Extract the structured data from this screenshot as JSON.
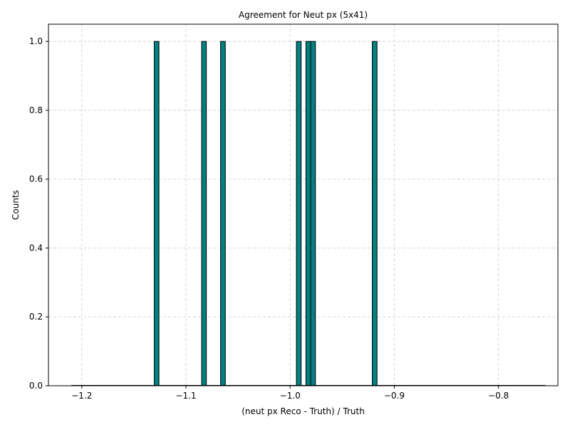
{
  "chart_data": {
    "type": "bar",
    "title": "Agreement for Neut px (5x41)",
    "xlabel": "(neut px Reco - Truth) / Truth",
    "ylabel": "Counts",
    "xlim": [
      -1.232,
      -0.743
    ],
    "ylim": [
      0.0,
      1.05
    ],
    "x_range_drawn": [
      -1.21,
      -0.755
    ],
    "bin_width": 0.00455,
    "xticks": [
      -1.2,
      -1.1,
      -1.0,
      -0.9,
      -0.8
    ],
    "xtick_labels": [
      "−1.2",
      "−1.1",
      "−1.0",
      "−0.9",
      "−0.8"
    ],
    "yticks": [
      0.0,
      0.2,
      0.4,
      0.6,
      0.8,
      1.0
    ],
    "ytick_labels": [
      "0.0",
      "0.2",
      "0.4",
      "0.6",
      "0.8",
      "1.0"
    ],
    "grid": true,
    "bars": [
      {
        "x": -1.1282,
        "value": 1
      },
      {
        "x": -1.0827,
        "value": 1
      },
      {
        "x": -1.0645,
        "value": 1
      },
      {
        "x": -0.9917,
        "value": 1
      },
      {
        "x": -0.9826,
        "value": 1
      },
      {
        "x": -0.978,
        "value": 1
      },
      {
        "x": -0.9189,
        "value": 1
      }
    ],
    "colors": {
      "bar_fill": "#008080",
      "bar_edge": "#000000",
      "grid": "#cccccc"
    }
  }
}
